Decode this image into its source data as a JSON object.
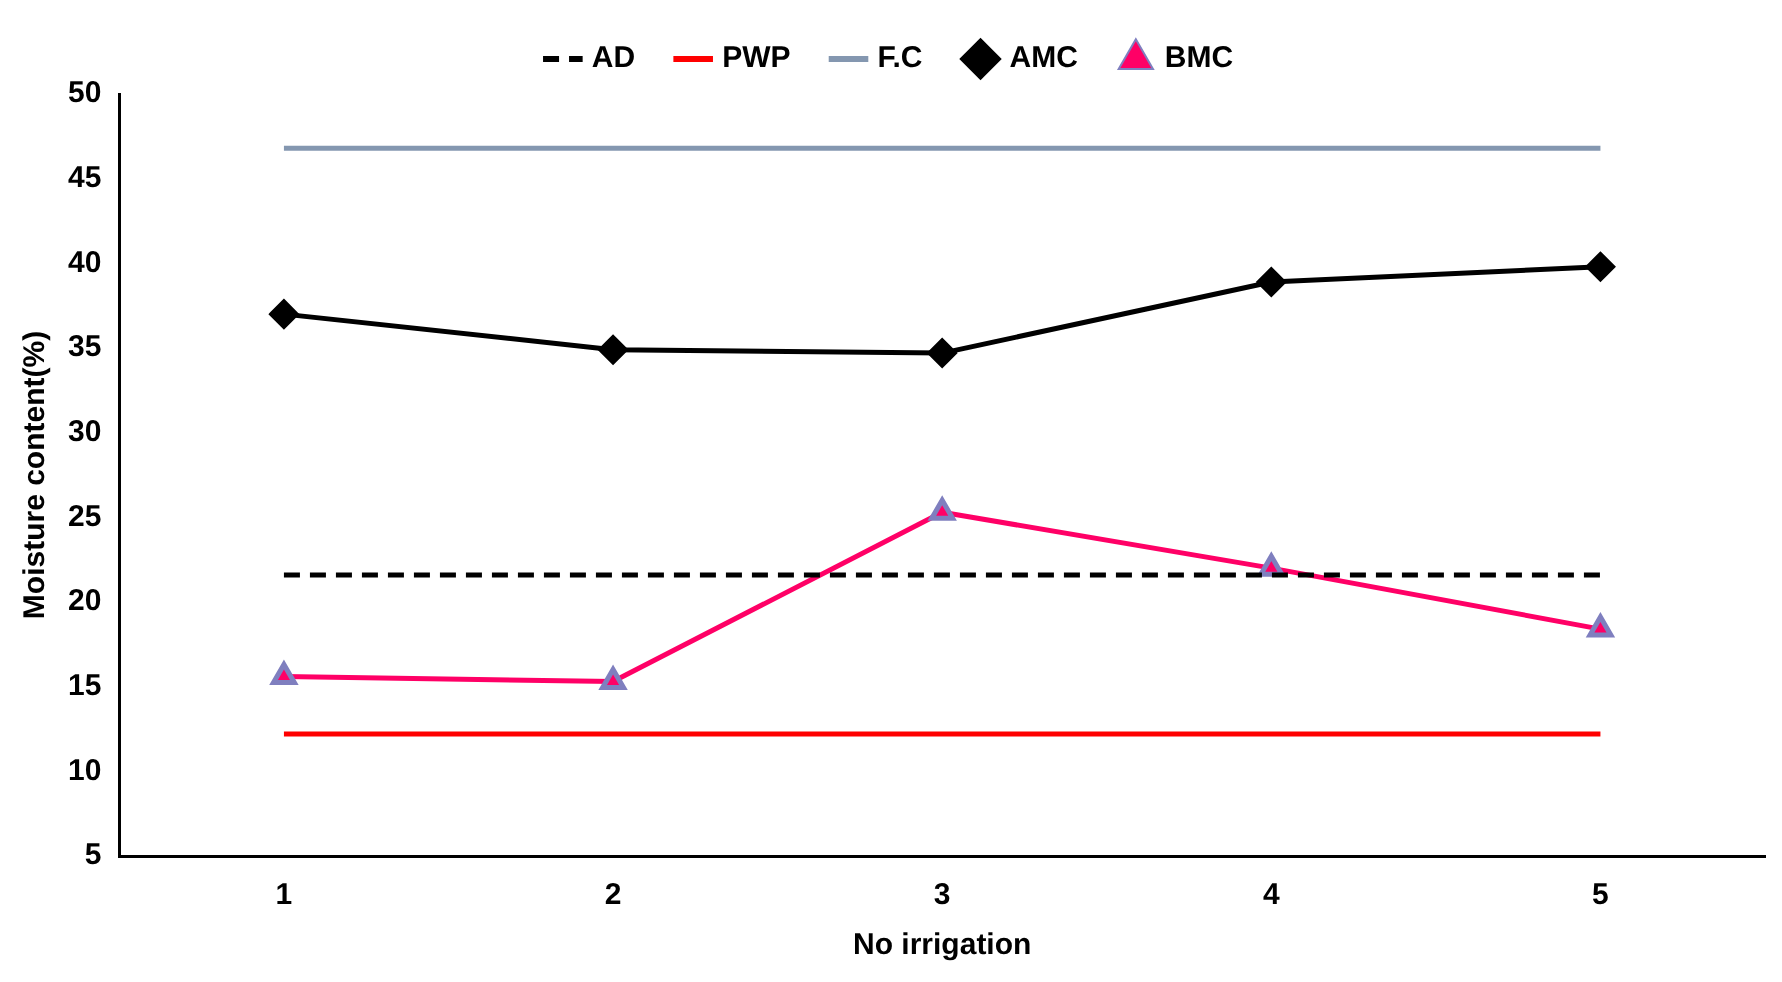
{
  "chart_data": {
    "type": "line",
    "xlabel": "No irrigation",
    "ylabel": "Moisture content(%)",
    "categories": [
      "1",
      "2",
      "3",
      "4",
      "5"
    ],
    "series": [
      {
        "name": "AD",
        "color": "#000000",
        "values": [
          21.6,
          21.6,
          21.6,
          21.6,
          21.6
        ],
        "line_style": "dashed",
        "marker": "none"
      },
      {
        "name": "PWP",
        "color": "#ff0000",
        "values": [
          12.2,
          12.2,
          12.2,
          12.2,
          12.2
        ],
        "line_style": "solid",
        "marker": "none"
      },
      {
        "name": "F.C",
        "color": "#8497b0",
        "values": [
          46.8,
          46.8,
          46.8,
          46.8,
          46.8
        ],
        "line_style": "solid",
        "marker": "none"
      },
      {
        "name": "AMC",
        "color": "#000000",
        "values": [
          37.0,
          34.9,
          34.7,
          38.9,
          39.8
        ],
        "line_style": "solid",
        "marker": "diamond"
      },
      {
        "name": "BMC",
        "color": "#ff0066",
        "values": [
          15.6,
          15.3,
          25.3,
          22.0,
          18.4
        ],
        "line_style": "solid",
        "marker": "triangle"
      }
    ],
    "ylim": [
      5,
      50
    ],
    "yticks": [
      5,
      10,
      15,
      20,
      25,
      30,
      35,
      40,
      45,
      50
    ],
    "grid": false,
    "legend": "top"
  }
}
